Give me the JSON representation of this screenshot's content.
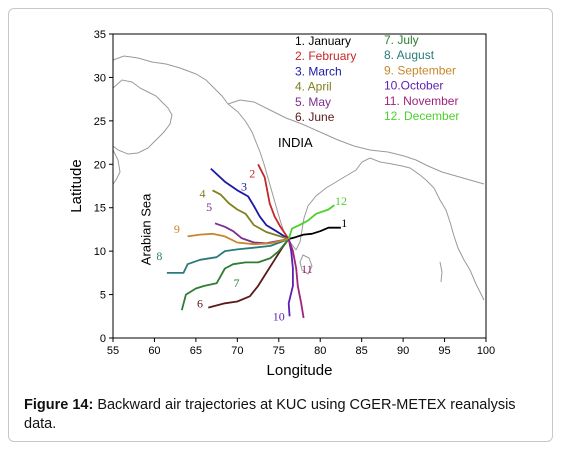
{
  "chart_data": {
    "type": "line",
    "title": "",
    "xlabel": "Longitude",
    "ylabel": "Latitude",
    "xlim": [
      55,
      100
    ],
    "ylim": [
      0,
      35
    ],
    "xticks": [
      55,
      60,
      65,
      70,
      75,
      80,
      85,
      90,
      95,
      100
    ],
    "yticks": [
      0,
      5,
      10,
      15,
      20,
      25,
      30,
      35
    ],
    "grid": false,
    "annotations": [
      {
        "text": "INDIA",
        "x": 77,
        "y": 22
      },
      {
        "text": "Arabian Sea",
        "x": 59.5,
        "y": 12.5,
        "rotation": -90
      }
    ],
    "legend_position": "top-right",
    "endpoint": {
      "x": 76.2,
      "y": 11.4
    },
    "series": [
      {
        "name": "1. January",
        "label": "1",
        "color": "#000000",
        "points": [
          [
            82.5,
            12.7
          ],
          [
            81.0,
            12.7
          ],
          [
            80.0,
            12.3
          ],
          [
            79.0,
            12.0
          ],
          [
            78.0,
            11.9
          ],
          [
            77.0,
            11.6
          ],
          [
            76.2,
            11.4
          ]
        ]
      },
      {
        "name": "2. February",
        "label": "2",
        "color": "#c62828",
        "points": [
          [
            72.5,
            20.0
          ],
          [
            73.3,
            18.5
          ],
          [
            73.6,
            17.0
          ],
          [
            73.9,
            15.5
          ],
          [
            74.5,
            14.0
          ],
          [
            75.2,
            12.8
          ],
          [
            76.2,
            11.4
          ]
        ]
      },
      {
        "name": "3. March",
        "label": "3",
        "color": "#1a1aa6",
        "points": [
          [
            66.8,
            19.5
          ],
          [
            68.5,
            18.0
          ],
          [
            70.0,
            17.0
          ],
          [
            71.3,
            16.3
          ],
          [
            72.0,
            15.2
          ],
          [
            72.7,
            14.0
          ],
          [
            73.5,
            13.0
          ],
          [
            74.7,
            12.3
          ],
          [
            76.2,
            11.4
          ]
        ]
      },
      {
        "name": "4. April",
        "label": "4",
        "color": "#808020",
        "points": [
          [
            67.0,
            17.0
          ],
          [
            68.0,
            16.5
          ],
          [
            69.0,
            15.5
          ],
          [
            70.0,
            14.8
          ],
          [
            71.0,
            14.3
          ],
          [
            72.0,
            13.0
          ],
          [
            73.5,
            12.2
          ],
          [
            76.2,
            11.4
          ]
        ]
      },
      {
        "name": "5. May",
        "label": "5",
        "color": "#7b2e8e",
        "points": [
          [
            67.3,
            13.2
          ],
          [
            68.5,
            12.8
          ],
          [
            69.5,
            12.3
          ],
          [
            70.5,
            11.5
          ],
          [
            72.0,
            11.0
          ],
          [
            73.5,
            10.9
          ],
          [
            76.2,
            11.4
          ]
        ]
      },
      {
        "name": "6. June",
        "label": "6",
        "color": "#5a1a1a",
        "points": [
          [
            66.5,
            3.5
          ],
          [
            68.5,
            4.0
          ],
          [
            70.0,
            4.2
          ],
          [
            71.5,
            4.8
          ],
          [
            72.5,
            6.0
          ],
          [
            73.5,
            7.5
          ],
          [
            74.5,
            9.0
          ],
          [
            75.5,
            10.5
          ],
          [
            76.2,
            11.4
          ]
        ]
      },
      {
        "name": "7. July",
        "label": "7",
        "color": "#2e7d32",
        "points": [
          [
            63.3,
            3.2
          ],
          [
            63.8,
            5.0
          ],
          [
            65.0,
            5.7
          ],
          [
            66.0,
            6.0
          ],
          [
            67.5,
            6.3
          ],
          [
            68.5,
            8.0
          ],
          [
            69.5,
            8.5
          ],
          [
            71.0,
            8.7
          ],
          [
            72.5,
            8.7
          ],
          [
            74.0,
            9.2
          ],
          [
            75.0,
            10.0
          ],
          [
            76.2,
            11.4
          ]
        ]
      },
      {
        "name": "8. August",
        "label": "8",
        "color": "#2a7a7a",
        "points": [
          [
            61.5,
            7.5
          ],
          [
            63.5,
            7.5
          ],
          [
            64.0,
            8.5
          ],
          [
            65.5,
            9.0
          ],
          [
            67.5,
            9.3
          ],
          [
            68.5,
            10.0
          ],
          [
            70.0,
            10.2
          ],
          [
            72.0,
            10.4
          ],
          [
            74.0,
            10.6
          ],
          [
            76.2,
            11.4
          ]
        ]
      },
      {
        "name": "9. September",
        "label": "9",
        "color": "#c8862a",
        "points": [
          [
            64.0,
            11.7
          ],
          [
            65.5,
            11.9
          ],
          [
            67.0,
            12.0
          ],
          [
            68.5,
            11.7
          ],
          [
            70.0,
            11.0
          ],
          [
            72.0,
            10.8
          ],
          [
            74.0,
            10.9
          ],
          [
            76.2,
            11.4
          ]
        ]
      },
      {
        "name": "10.October",
        "label": "10",
        "color": "#5b1fb0",
        "points": [
          [
            76.3,
            2.5
          ],
          [
            76.2,
            4.0
          ],
          [
            76.7,
            6.0
          ],
          [
            76.7,
            8.0
          ],
          [
            76.5,
            10.0
          ],
          [
            76.2,
            11.4
          ]
        ]
      },
      {
        "name": "11. November",
        "label": "11",
        "color": "#a0237a",
        "points": [
          [
            78.0,
            2.3
          ],
          [
            77.7,
            4.0
          ],
          [
            77.3,
            6.0
          ],
          [
            77.1,
            8.0
          ],
          [
            76.7,
            10.0
          ],
          [
            76.2,
            11.4
          ]
        ]
      },
      {
        "name": "12. December",
        "label": "12",
        "color": "#4bd12b",
        "points": [
          [
            81.7,
            15.3
          ],
          [
            81.0,
            14.8
          ],
          [
            79.5,
            14.3
          ],
          [
            78.5,
            13.5
          ],
          [
            77.5,
            13.0
          ],
          [
            76.6,
            12.6
          ],
          [
            76.2,
            11.4
          ]
        ]
      }
    ],
    "series_labels": [
      {
        "text": "1",
        "x": 82.9,
        "y": 12.8
      },
      {
        "text": "2",
        "x": 71.8,
        "y": 18.5
      },
      {
        "text": "3",
        "x": 70.8,
        "y": 17.0
      },
      {
        "text": "4",
        "x": 65.8,
        "y": 16.2
      },
      {
        "text": "5",
        "x": 66.6,
        "y": 14.6
      },
      {
        "text": "6",
        "x": 65.5,
        "y": 3.5
      },
      {
        "text": "7",
        "x": 69.9,
        "y": 5.9
      },
      {
        "text": "8",
        "x": 60.6,
        "y": 9.0
      },
      {
        "text": "9",
        "x": 62.7,
        "y": 12.1
      },
      {
        "text": "10",
        "x": 75.0,
        "y": 2.0
      },
      {
        "text": "11",
        "x": 78.4,
        "y": 7.5
      },
      {
        "text": "12",
        "x": 82.5,
        "y": 15.3
      }
    ]
  },
  "caption": {
    "label": "Figure 14:",
    "text": " Backward air trajectories at KUC using CGER-METEX reanalysis data."
  }
}
